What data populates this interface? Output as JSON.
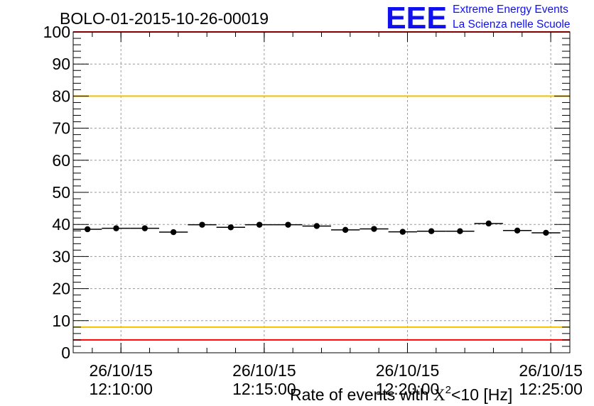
{
  "chart_data": {
    "type": "scatter",
    "title": "BOLO-01-2015-10-26-00019",
    "logo": {
      "mark": "EEE",
      "line1": "Extreme Energy Events",
      "line2": "La Scienza nelle Scuole"
    },
    "xlabel": {
      "prefix": "Rate of events with ",
      "symbol": "X",
      "superscript": "2",
      "suffix": "<10 [Hz]"
    },
    "ylabel": "",
    "ylim": [
      0,
      100
    ],
    "yticks": [
      {
        "value": 0,
        "label": "0"
      },
      {
        "value": 10,
        "label": "10"
      },
      {
        "value": 20,
        "label": "20"
      },
      {
        "value": 30,
        "label": "30"
      },
      {
        "value": 40,
        "label": "40"
      },
      {
        "value": 50,
        "label": "50"
      },
      {
        "value": 60,
        "label": "60"
      },
      {
        "value": 70,
        "label": "70"
      },
      {
        "value": 80,
        "label": "80"
      },
      {
        "value": 90,
        "label": "90"
      },
      {
        "value": 100,
        "label": "100"
      }
    ],
    "xlim": [
      "2015-10-26 12:08:20",
      "2015-10-26 12:25:40"
    ],
    "xticks": [
      {
        "x": "2015-10-26 12:10:00",
        "date": "26/10/15",
        "time": "12:10:00"
      },
      {
        "x": "2015-10-26 12:15:00",
        "date": "26/10/15",
        "time": "12:15:00"
      },
      {
        "x": "2015-10-26 12:20:00",
        "date": "26/10/15",
        "time": "12:20:00"
      },
      {
        "x": "2015-10-26 12:25:00",
        "date": "26/10/15",
        "time": "12:25:00"
      }
    ],
    "grid": true,
    "reference_lines": [
      {
        "y": 80,
        "color": "#f2c200"
      },
      {
        "y": 8,
        "color": "#f2c200"
      },
      {
        "y": 100,
        "color": "#ff0000"
      },
      {
        "y": 4,
        "color": "#ff0000"
      }
    ],
    "series": [
      {
        "color": "#000000",
        "points": [
          {
            "x": "2015-10-26 12:08:50",
            "y": 38.5
          },
          {
            "x": "2015-10-26 12:09:50",
            "y": 38.8
          },
          {
            "x": "2015-10-26 12:10:50",
            "y": 38.8
          },
          {
            "x": "2015-10-26 12:11:50",
            "y": 37.6
          },
          {
            "x": "2015-10-26 12:12:50",
            "y": 39.9
          },
          {
            "x": "2015-10-26 12:13:50",
            "y": 39.1
          },
          {
            "x": "2015-10-26 12:14:50",
            "y": 39.9
          },
          {
            "x": "2015-10-26 12:15:50",
            "y": 39.9
          },
          {
            "x": "2015-10-26 12:16:50",
            "y": 39.5
          },
          {
            "x": "2015-10-26 12:17:50",
            "y": 38.3
          },
          {
            "x": "2015-10-26 12:18:50",
            "y": 38.6
          },
          {
            "x": "2015-10-26 12:19:50",
            "y": 37.7
          },
          {
            "x": "2015-10-26 12:20:50",
            "y": 37.9
          },
          {
            "x": "2015-10-26 12:21:50",
            "y": 37.9
          },
          {
            "x": "2015-10-26 12:22:50",
            "y": 40.3
          },
          {
            "x": "2015-10-26 12:23:50",
            "y": 38.1
          },
          {
            "x": "2015-10-26 12:24:50",
            "y": 37.4
          }
        ]
      }
    ]
  }
}
